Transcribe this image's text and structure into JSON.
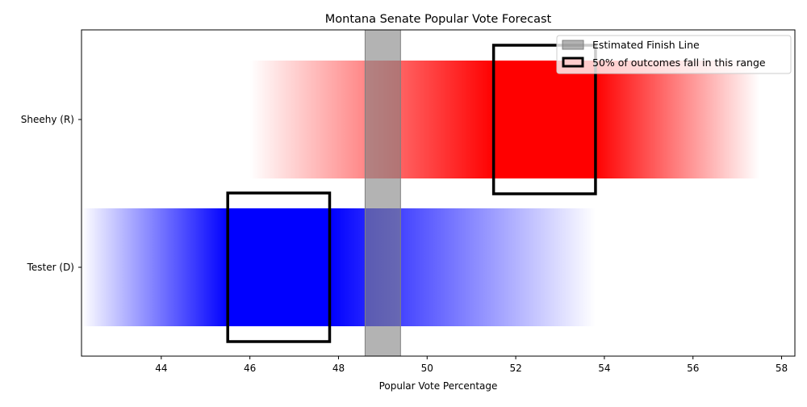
{
  "chart_data": {
    "type": "range-bar",
    "title": "Montana Senate Popular Vote Forecast",
    "xlabel": "Popular Vote Percentage",
    "ylabel": "",
    "xlim": [
      42.2,
      58.3
    ],
    "xticks": [
      44,
      46,
      48,
      50,
      52,
      54,
      56,
      58
    ],
    "grid": false,
    "legend_position": "top-right",
    "finish_line": {
      "label": "Estimated Finish Line",
      "range": [
        48.6,
        49.4
      ],
      "color": "#808080"
    },
    "iqr_label": "50% of outcomes fall in this range",
    "series": [
      {
        "name": "Sheehy (R)",
        "color": "#ff0000",
        "range": [
          46.0,
          57.5
        ],
        "peak_range": [
          51.5,
          53.8
        ]
      },
      {
        "name": "Tester (D)",
        "color": "#0000ff",
        "range": [
          42.2,
          53.8
        ],
        "peak_range": [
          45.5,
          47.8
        ]
      }
    ]
  }
}
